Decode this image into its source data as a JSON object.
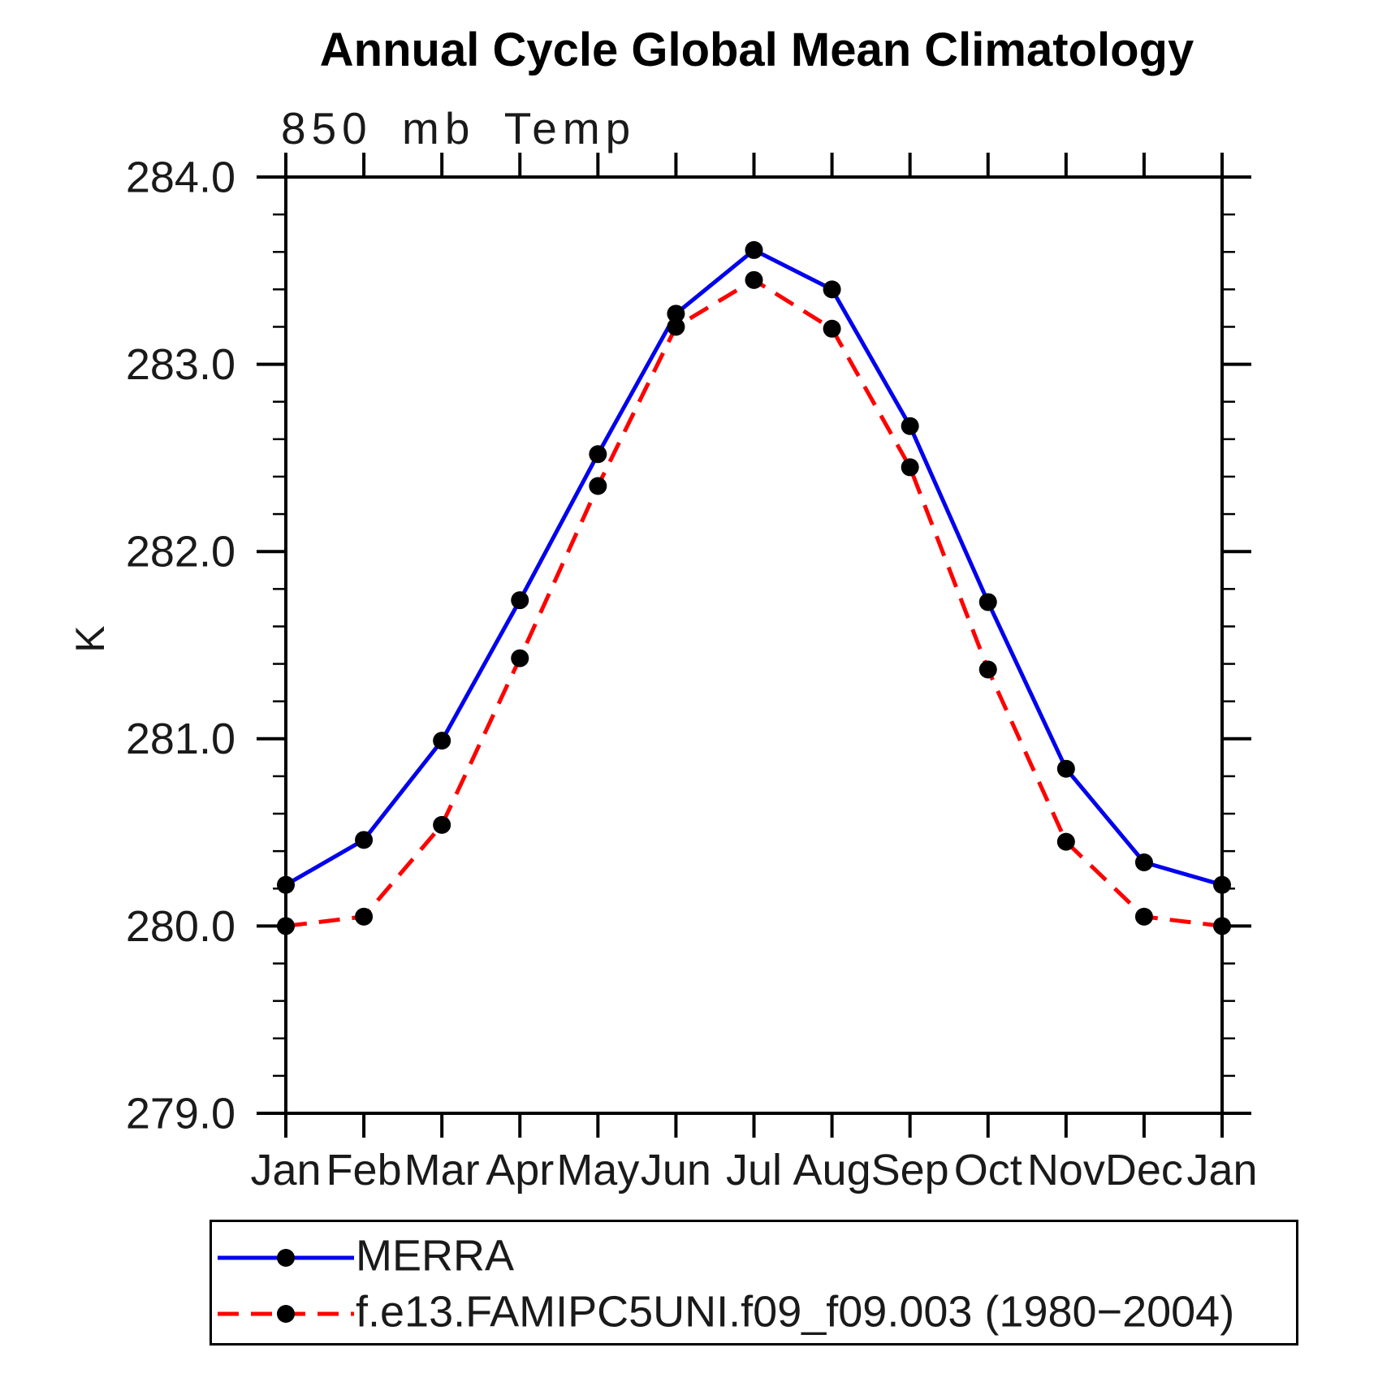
{
  "chart": {
    "title": "Annual Cycle Global Mean Climatology",
    "subtitle": "850 mb Temp",
    "ylabel": "K"
  },
  "chart_data": {
    "type": "line",
    "title": "Annual Cycle Global Mean Climatology",
    "subtitle": "850 mb Temp",
    "xlabel": "",
    "ylabel": "K",
    "categories": [
      "Jan",
      "Feb",
      "Mar",
      "Apr",
      "May",
      "Jun",
      "Jul",
      "Aug",
      "Sep",
      "Oct",
      "Nov",
      "Dec",
      "Jan"
    ],
    "ylim": [
      279.0,
      284.0
    ],
    "ytick_step": 1.0,
    "yminor_step": 0.2,
    "ytick_labels": [
      "279.0",
      "280.0",
      "281.0",
      "282.0",
      "283.0",
      "284.0"
    ],
    "grid": "off",
    "legend_position": "bottom",
    "axis_color": "#000000",
    "marker_color": "#000000",
    "series": [
      {
        "name": "MERRA",
        "color": "#0000ee",
        "style": "solid",
        "values": [
          280.22,
          280.46,
          280.99,
          281.74,
          282.52,
          283.27,
          283.61,
          283.4,
          282.67,
          281.73,
          280.84,
          280.34,
          280.22
        ]
      },
      {
        "name": "f.e13.FAMIPC5UNI.f09_f09.003 (1980−2004)",
        "color": "#ff0000",
        "style": "dashed",
        "values": [
          280.0,
          280.05,
          280.54,
          281.43,
          282.35,
          283.2,
          283.45,
          283.19,
          282.45,
          281.37,
          280.45,
          280.05,
          280.0
        ]
      }
    ]
  }
}
